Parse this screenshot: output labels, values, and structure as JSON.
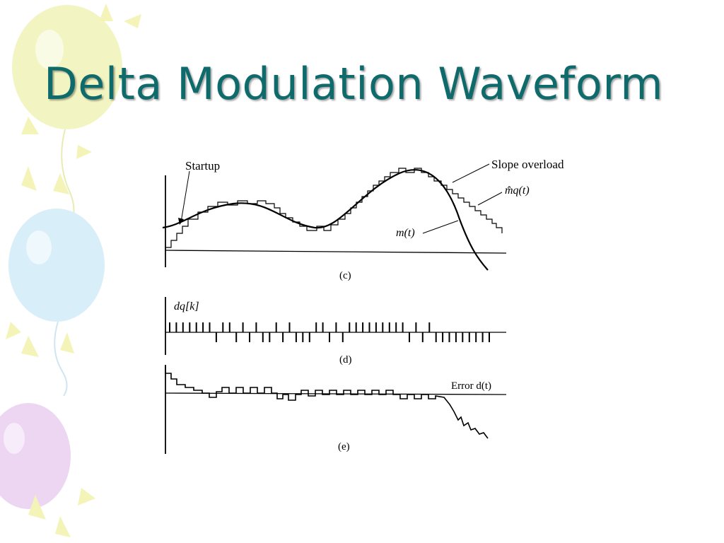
{
  "slide": {
    "title": "Delta Modulation Waveform",
    "colors": {
      "title": "#0f6b6b",
      "balloon_yellow": "#f2f5c2",
      "balloon_blue": "#d8eef8",
      "balloon_purple": "#ecd6f2"
    }
  },
  "figure": {
    "panels": [
      {
        "caption": "(c)",
        "labels": {
          "startup": "Startup",
          "slope_overload": "Slope overload",
          "staircase": "m̂q(t)",
          "message": "m(t)"
        }
      },
      {
        "caption": "(d)",
        "labels": {
          "pulse_train": "dq[k]"
        }
      },
      {
        "caption": "(e)",
        "labels": {
          "error": "Error d(t)"
        }
      }
    ]
  }
}
